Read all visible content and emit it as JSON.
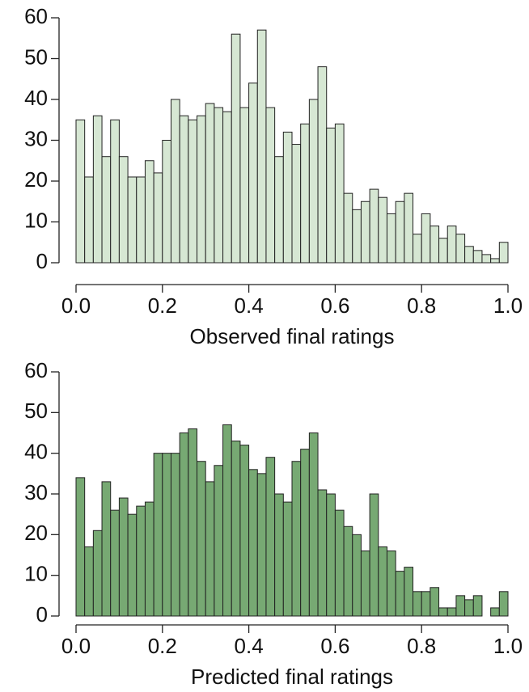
{
  "chart_data": [
    {
      "type": "histogram",
      "xlabel": "Observed final ratings",
      "color": "#d6e7d3",
      "bins": [
        0,
        0.02,
        0.04,
        0.06,
        0.08,
        0.1,
        0.12,
        0.14,
        0.16,
        0.18,
        0.2,
        0.22,
        0.24,
        0.26,
        0.28,
        0.3,
        0.32,
        0.34,
        0.36,
        0.38,
        0.4,
        0.42,
        0.44,
        0.46,
        0.48,
        0.5,
        0.52,
        0.54,
        0.56,
        0.58,
        0.6,
        0.62,
        0.64,
        0.66,
        0.68,
        0.7,
        0.72,
        0.74,
        0.76,
        0.78,
        0.8,
        0.82,
        0.84,
        0.86,
        0.88,
        0.9,
        0.92,
        0.94,
        0.96,
        0.98,
        1
      ],
      "counts": [
        35,
        21,
        36,
        26,
        35,
        26,
        21,
        21,
        25,
        22,
        30,
        40,
        36,
        35,
        36,
        39,
        38,
        37,
        56,
        38,
        44,
        57,
        38,
        26,
        32,
        29,
        34,
        40,
        48,
        33,
        34,
        17,
        13,
        15,
        18,
        16,
        12,
        15,
        17,
        7,
        12,
        9,
        6,
        9,
        7,
        4,
        3,
        2,
        1,
        5
      ],
      "xlim": [
        0,
        1
      ],
      "ylim": [
        0,
        60
      ],
      "xticks": [
        {
          "value": 0,
          "label": "0.0"
        },
        0.2,
        0.4,
        0.6,
        0.8,
        {
          "value": 1,
          "label": "1.0"
        }
      ],
      "yticks": [
        0,
        10,
        20,
        30,
        40,
        50,
        60
      ]
    },
    {
      "type": "histogram",
      "xlabel": "Predicted final ratings",
      "color": "#77a973",
      "bins": [
        0,
        0.02,
        0.04,
        0.06,
        0.08,
        0.1,
        0.12,
        0.14,
        0.16,
        0.18,
        0.2,
        0.22,
        0.24,
        0.26,
        0.28,
        0.3,
        0.32,
        0.34,
        0.36,
        0.38,
        0.4,
        0.42,
        0.44,
        0.46,
        0.48,
        0.5,
        0.52,
        0.54,
        0.56,
        0.58,
        0.6,
        0.62,
        0.64,
        0.66,
        0.68,
        0.7,
        0.72,
        0.74,
        0.76,
        0.78,
        0.8,
        0.82,
        0.84,
        0.86,
        0.88,
        0.9,
        0.92,
        0.94,
        0.96,
        0.98,
        1
      ],
      "counts": [
        34,
        17,
        21,
        33,
        26,
        29,
        25,
        27,
        28,
        40,
        40,
        40,
        45,
        46,
        38,
        33,
        37,
        47,
        43,
        42,
        36,
        35,
        39,
        30,
        28,
        38,
        41,
        45,
        31,
        30,
        26,
        22,
        20,
        16,
        30,
        17,
        16,
        11,
        12,
        6,
        6,
        7,
        2,
        2,
        5,
        4,
        5,
        0,
        2,
        6
      ],
      "xlim": [
        0,
        1
      ],
      "ylim": [
        0,
        60
      ],
      "xticks": [
        {
          "value": 0,
          "label": "0.0"
        },
        0.2,
        0.4,
        0.6,
        0.8,
        {
          "value": 1,
          "label": "1.0"
        }
      ],
      "yticks": [
        0,
        10,
        20,
        30,
        40,
        50,
        60
      ]
    }
  ]
}
